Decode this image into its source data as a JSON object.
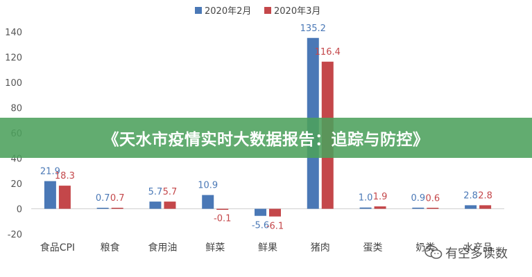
{
  "banner": {
    "title": "《天水市疫情实时大数据报告：追踪与防控》"
  },
  "watermark": {
    "text": "有空多读数"
  },
  "colors": {
    "feb": "#4a78b6",
    "mar": "#c4474a",
    "banner": "#4ca05c"
  },
  "chart_data": {
    "type": "bar",
    "categories": [
      "食品CPI",
      "粮食",
      "食用油",
      "鲜菜",
      "鲜果",
      "猪肉",
      "蛋类",
      "奶类",
      "水产品"
    ],
    "series": [
      {
        "name": "2020年2月",
        "values": [
          21.9,
          0.7,
          5.7,
          10.9,
          -5.6,
          135.2,
          1.0,
          0.9,
          2.8
        ]
      },
      {
        "name": "2020年3月",
        "values": [
          18.3,
          0.7,
          5.7,
          -0.1,
          -6.1,
          116.4,
          1.9,
          0.6,
          2.8
        ]
      }
    ],
    "value_labels": [
      [
        "21.9",
        "0.7",
        "5.7",
        "10.9",
        "-5.6",
        "135.2",
        "1.0",
        "0.9",
        "2.8"
      ],
      [
        "18.3",
        "0.7",
        "5.7",
        "-0.1",
        "-6.1",
        "116.4",
        "1.9",
        "0.6",
        "2.8"
      ]
    ],
    "yticks": [
      "140",
      "120",
      "100",
      "80",
      "60",
      "40",
      "20",
      "0",
      "-20"
    ],
    "ylim": [
      -20,
      140
    ],
    "grid": false,
    "legend_position": "top-center"
  }
}
